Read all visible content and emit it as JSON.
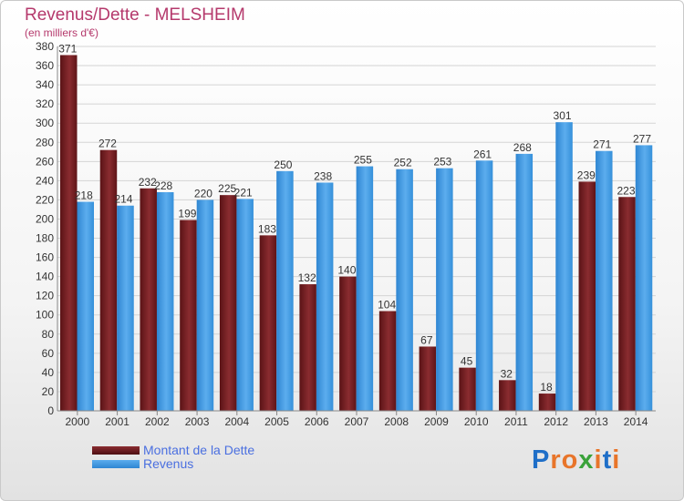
{
  "chart_data": {
    "type": "bar",
    "title": "Revenus/Dette - MELSHEIM",
    "subtitle": "(en milliers d'€)",
    "categories": [
      "2000",
      "2001",
      "2002",
      "2003",
      "2004",
      "2005",
      "2006",
      "2007",
      "2008",
      "2009",
      "2010",
      "2011",
      "2012",
      "2013",
      "2014"
    ],
    "series": [
      {
        "name": "Montant de la Dette",
        "color": "#6b1a1e",
        "values": [
          371,
          272,
          232,
          199,
          225,
          183,
          132,
          140,
          104,
          67,
          45,
          32,
          18,
          239,
          223
        ]
      },
      {
        "name": "Revenus",
        "color": "#3d97de",
        "values": [
          218,
          214,
          228,
          220,
          221,
          250,
          238,
          255,
          252,
          253,
          261,
          268,
          301,
          271,
          277
        ]
      }
    ],
    "ylim": [
      0,
      380
    ],
    "ytick_step": 20,
    "grid": true,
    "legend_position": "bottom-left"
  },
  "logo": {
    "text": "Proxiti",
    "colors": [
      "#1f6fc8",
      "#e8752a",
      "#e8752a",
      "#3aa23a",
      "#e8752a",
      "#1f6fc8",
      "#e8752a"
    ]
  }
}
